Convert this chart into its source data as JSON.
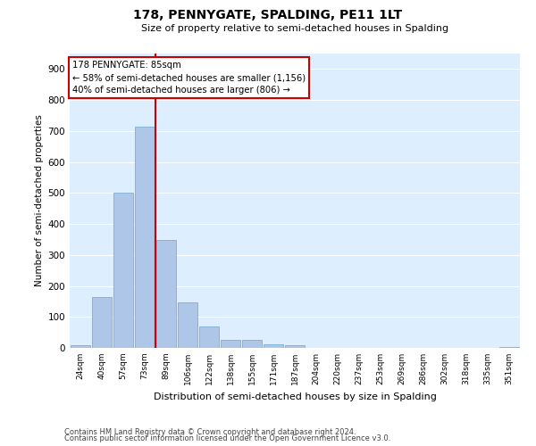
{
  "title": "178, PENNYGATE, SPALDING, PE11 1LT",
  "subtitle": "Size of property relative to semi-detached houses in Spalding",
  "xlabel": "Distribution of semi-detached houses by size in Spalding",
  "ylabel": "Number of semi-detached properties",
  "categories": [
    "24sqm",
    "40sqm",
    "57sqm",
    "73sqm",
    "89sqm",
    "106sqm",
    "122sqm",
    "138sqm",
    "155sqm",
    "171sqm",
    "187sqm",
    "204sqm",
    "220sqm",
    "237sqm",
    "253sqm",
    "269sqm",
    "286sqm",
    "302sqm",
    "318sqm",
    "335sqm",
    "351sqm"
  ],
  "values": [
    8,
    163,
    500,
    715,
    348,
    148,
    70,
    27,
    25,
    12,
    10,
    0,
    0,
    0,
    0,
    0,
    0,
    0,
    0,
    0,
    4
  ],
  "bar_color": "#aec6e8",
  "bar_edgecolor": "#7bafd4",
  "background_color": "#ddeeff",
  "grid_color": "#ffffff",
  "property_label": "178 PENNYGATE: 85sqm",
  "annotation_line1": "← 58% of semi-detached houses are smaller (1,156)",
  "annotation_line2": "40% of semi-detached houses are larger (806) →",
  "annotation_box_color": "#ffffff",
  "annotation_box_edgecolor": "#cc0000",
  "vline_color": "#cc0000",
  "ylim": [
    0,
    950
  ],
  "yticks": [
    0,
    100,
    200,
    300,
    400,
    500,
    600,
    700,
    800,
    900
  ],
  "footnote1": "Contains HM Land Registry data © Crown copyright and database right 2024.",
  "footnote2": "Contains public sector information licensed under the Open Government Licence v3.0."
}
